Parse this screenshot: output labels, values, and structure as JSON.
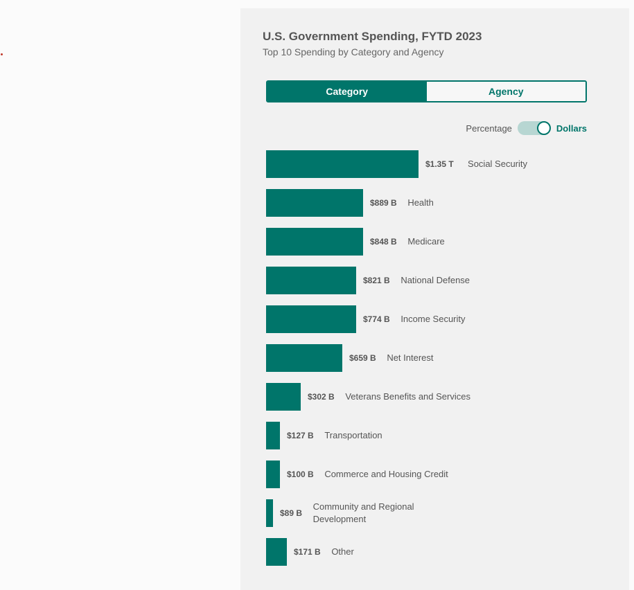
{
  "colors": {
    "accent": "#00756a",
    "toggle_track": "#b7d6d2",
    "dot": "#c0392b"
  },
  "header": {
    "title": "U.S. Government Spending, FYTD 2023",
    "subtitle": "Top 10 Spending by Category and Agency"
  },
  "tabs": [
    {
      "label": "Category",
      "active": true
    },
    {
      "label": "Agency",
      "active": false
    }
  ],
  "toggle": {
    "left_label": "Percentage",
    "right_label": "Dollars",
    "selected": "Dollars"
  },
  "chart_data": {
    "type": "bar",
    "orientation": "horizontal",
    "title": "U.S. Government Spending, FYTD 2023",
    "subtitle": "Top 10 Spending by Category and Agency",
    "unit": "USD",
    "categories": [
      "Social Security",
      "Health",
      "Medicare",
      "National Defense",
      "Income Security",
      "Net Interest",
      "Veterans Benefits and Services",
      "Transportation",
      "Commerce and Housing Credit",
      "Community and Regional Development",
      "Other"
    ],
    "values": [
      1350,
      889,
      848,
      821,
      774,
      659,
      302,
      127,
      100,
      89,
      171
    ],
    "value_units": "billions USD",
    "value_labels": [
      "$1.35 T",
      "$889 B",
      "$848 B",
      "$821 B",
      "$774 B",
      "$659 B",
      "$302 B",
      "$127 B",
      "$100 B",
      "$89 B",
      "$171 B"
    ],
    "grid": false,
    "legend": "none"
  }
}
